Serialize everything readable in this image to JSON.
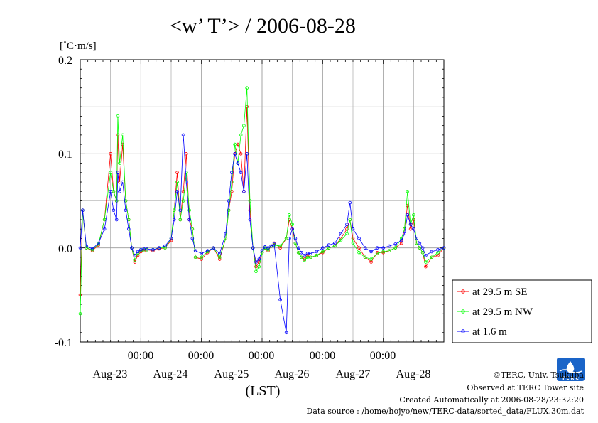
{
  "chart_data": {
    "type": "line",
    "title": "<w’ T’> / 2006-08-28",
    "unit_label": "[˚C·m/s]",
    "xlabel": "(LST)",
    "ylim": [
      -0.1,
      0.2
    ],
    "y_ticks": [
      "0.2",
      "0.1",
      "0.0",
      "-0.1"
    ],
    "x_range_days": [
      0,
      6
    ],
    "x_time_labels": [
      "00:00",
      "00:00",
      "00:00",
      "00:00",
      "00:00"
    ],
    "x_date_labels": [
      "Aug-23",
      "Aug-24",
      "Aug-25",
      "Aug-26",
      "Aug-27",
      "Aug-28"
    ],
    "grid": true,
    "legend_position": "right",
    "series": [
      {
        "name": "at 29.5 m SE",
        "color": "#ff0000",
        "x": [
          0.0,
          0.04,
          0.1,
          0.2,
          0.3,
          0.4,
          0.5,
          0.55,
          0.6,
          0.62,
          0.65,
          0.7,
          0.75,
          0.8,
          0.85,
          0.9,
          0.95,
          1.0,
          1.05,
          1.1,
          1.2,
          1.3,
          1.4,
          1.5,
          1.55,
          1.6,
          1.65,
          1.7,
          1.75,
          1.8,
          1.85,
          1.9,
          2.0,
          2.1,
          2.2,
          2.3,
          2.4,
          2.45,
          2.5,
          2.55,
          2.6,
          2.65,
          2.7,
          2.75,
          2.8,
          2.85,
          2.9,
          2.95,
          3.0,
          3.05,
          3.1,
          3.15,
          3.2,
          3.3,
          3.4,
          3.45,
          3.5,
          3.55,
          3.6,
          3.65,
          3.7,
          3.75,
          3.8,
          3.9,
          4.0,
          4.1,
          4.2,
          4.3,
          4.4,
          4.45,
          4.5,
          4.6,
          4.7,
          4.8,
          4.9,
          5.0,
          5.1,
          5.2,
          5.3,
          5.35,
          5.4,
          5.45,
          5.5,
          5.55,
          5.6,
          5.65,
          5.7,
          5.8,
          5.9,
          6.0
        ],
        "y": [
          -0.05,
          0.04,
          0.0,
          -0.003,
          0.003,
          0.03,
          0.1,
          0.06,
          0.05,
          0.12,
          0.07,
          0.11,
          0.05,
          0.03,
          0.0,
          -0.015,
          -0.008,
          -0.004,
          -0.003,
          -0.002,
          -0.003,
          -0.001,
          0.0,
          0.008,
          0.04,
          0.08,
          0.03,
          0.06,
          0.1,
          0.03,
          0.02,
          -0.01,
          -0.012,
          -0.005,
          0.0,
          -0.012,
          0.01,
          0.04,
          0.06,
          0.1,
          0.11,
          0.1,
          0.06,
          0.15,
          0.04,
          0.0,
          -0.02,
          -0.015,
          -0.005,
          0.0,
          -0.003,
          0.002,
          0.005,
          0.0,
          0.01,
          0.03,
          0.02,
          0.005,
          -0.005,
          -0.01,
          -0.012,
          -0.008,
          -0.01,
          -0.008,
          -0.005,
          0.0,
          0.002,
          0.01,
          0.02,
          0.03,
          0.01,
          0.0,
          -0.01,
          -0.015,
          -0.005,
          -0.005,
          -0.003,
          0.0,
          0.005,
          0.02,
          0.045,
          0.02,
          0.03,
          0.005,
          0.0,
          -0.005,
          -0.02,
          -0.01,
          -0.008,
          0.0
        ]
      },
      {
        "name": "at 29.5 m NW",
        "color": "#00ff00",
        "x": [
          0.0,
          0.04,
          0.1,
          0.2,
          0.3,
          0.4,
          0.5,
          0.55,
          0.6,
          0.62,
          0.65,
          0.7,
          0.75,
          0.8,
          0.85,
          0.9,
          0.95,
          1.0,
          1.05,
          1.1,
          1.2,
          1.3,
          1.4,
          1.5,
          1.55,
          1.6,
          1.65,
          1.7,
          1.75,
          1.8,
          1.85,
          1.9,
          2.0,
          2.1,
          2.2,
          2.3,
          2.4,
          2.45,
          2.5,
          2.55,
          2.6,
          2.65,
          2.7,
          2.75,
          2.8,
          2.85,
          2.9,
          2.95,
          3.0,
          3.05,
          3.1,
          3.15,
          3.2,
          3.3,
          3.4,
          3.45,
          3.5,
          3.55,
          3.6,
          3.65,
          3.7,
          3.75,
          3.8,
          3.9,
          4.0,
          4.1,
          4.2,
          4.3,
          4.4,
          4.45,
          4.5,
          4.6,
          4.7,
          4.8,
          4.9,
          5.0,
          5.1,
          5.2,
          5.3,
          5.35,
          5.4,
          5.45,
          5.5,
          5.55,
          5.6,
          5.65,
          5.7,
          5.8,
          5.9,
          6.0
        ],
        "y": [
          -0.07,
          0.04,
          0.0,
          -0.002,
          0.004,
          0.03,
          0.08,
          0.06,
          0.05,
          0.14,
          0.09,
          0.12,
          0.05,
          0.03,
          0.0,
          -0.013,
          -0.006,
          -0.003,
          -0.002,
          -0.002,
          -0.002,
          0.0,
          0.0,
          0.01,
          0.04,
          0.07,
          0.03,
          0.05,
          0.08,
          0.04,
          0.02,
          -0.01,
          -0.01,
          -0.004,
          0.0,
          -0.01,
          0.01,
          0.04,
          0.07,
          0.11,
          0.09,
          0.12,
          0.13,
          0.17,
          0.05,
          0.0,
          -0.025,
          -0.02,
          -0.005,
          0.0,
          -0.002,
          0.002,
          0.003,
          0.002,
          0.01,
          0.035,
          0.025,
          0.005,
          -0.005,
          -0.01,
          -0.013,
          -0.01,
          -0.01,
          -0.008,
          -0.004,
          0.0,
          0.002,
          0.008,
          0.015,
          0.03,
          0.005,
          -0.005,
          -0.01,
          -0.012,
          -0.006,
          -0.004,
          -0.003,
          0.0,
          0.01,
          0.02,
          0.06,
          0.025,
          0.035,
          0.005,
          0.0,
          -0.005,
          -0.015,
          -0.01,
          -0.005,
          0.0
        ]
      },
      {
        "name": "at 1.6 m",
        "color": "#0000ff",
        "x": [
          0.0,
          0.04,
          0.1,
          0.2,
          0.3,
          0.4,
          0.5,
          0.55,
          0.6,
          0.62,
          0.65,
          0.7,
          0.75,
          0.8,
          0.85,
          0.9,
          0.95,
          1.0,
          1.05,
          1.1,
          1.2,
          1.3,
          1.4,
          1.5,
          1.55,
          1.6,
          1.65,
          1.7,
          1.75,
          1.8,
          1.85,
          1.9,
          2.0,
          2.1,
          2.2,
          2.3,
          2.4,
          2.45,
          2.5,
          2.55,
          2.6,
          2.65,
          2.7,
          2.75,
          2.8,
          2.85,
          2.9,
          2.95,
          3.0,
          3.05,
          3.1,
          3.15,
          3.2,
          3.3,
          3.4,
          3.45,
          3.5,
          3.55,
          3.6,
          3.65,
          3.7,
          3.75,
          3.8,
          3.9,
          4.0,
          4.1,
          4.2,
          4.3,
          4.4,
          4.45,
          4.5,
          4.6,
          4.7,
          4.8,
          4.9,
          5.0,
          5.1,
          5.2,
          5.3,
          5.35,
          5.4,
          5.45,
          5.5,
          5.55,
          5.6,
          5.65,
          5.7,
          5.8,
          5.9,
          6.0
        ],
        "y": [
          0.0,
          0.04,
          0.002,
          -0.001,
          0.005,
          0.02,
          0.06,
          0.04,
          0.03,
          0.08,
          0.06,
          0.07,
          0.04,
          0.02,
          0.0,
          -0.008,
          -0.004,
          -0.002,
          -0.001,
          -0.001,
          -0.002,
          0.0,
          0.002,
          0.01,
          0.03,
          0.06,
          0.04,
          0.12,
          0.07,
          0.03,
          0.01,
          -0.003,
          -0.006,
          -0.003,
          0.0,
          -0.006,
          0.015,
          0.05,
          0.08,
          0.1,
          0.09,
          0.08,
          0.06,
          0.1,
          0.03,
          0.0,
          -0.015,
          -0.012,
          -0.003,
          0.001,
          0.0,
          0.002,
          0.004,
          -0.055,
          -0.09,
          0.01,
          0.02,
          0.01,
          0.0,
          -0.005,
          -0.008,
          -0.006,
          -0.006,
          -0.004,
          0.0,
          0.003,
          0.005,
          0.015,
          0.025,
          0.048,
          0.02,
          0.01,
          0.0,
          -0.004,
          0.0,
          0.0,
          0.002,
          0.004,
          0.008,
          0.015,
          0.035,
          0.025,
          0.02,
          0.01,
          0.005,
          0.0,
          -0.008,
          -0.004,
          -0.002,
          0.0
        ]
      }
    ]
  },
  "credits": {
    "copyright": "©TERC, Univ. Tsukuba",
    "site": "Observed at TERC Tower site",
    "created": "Created Automatically at 2006-08-28/23:32:20",
    "source": "Data source : /home/hojyo/new/TERC-data/sorted_data/FLUX.30m.dat",
    "logo_text": "T E R C"
  }
}
